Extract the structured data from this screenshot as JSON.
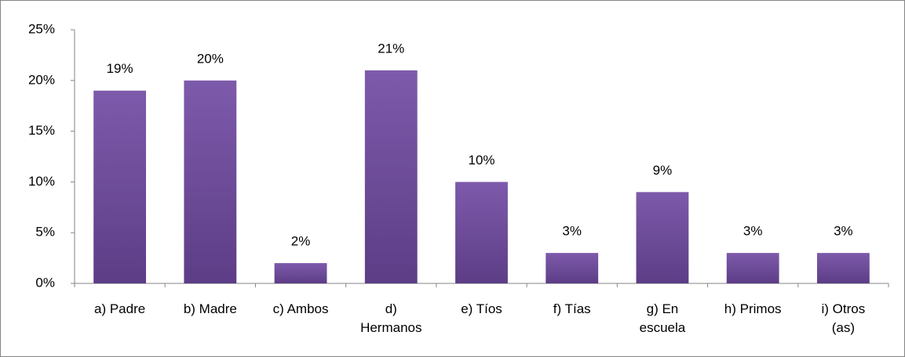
{
  "chart_data": {
    "type": "bar",
    "categories": [
      "a) Padre",
      "b) Madre",
      "c) Ambos",
      "d) Hermanos",
      "e) Tíos",
      "f) Tías",
      "g) En escuela",
      "h) Primos",
      "i) Otros (as)"
    ],
    "values": [
      19,
      20,
      2,
      21,
      10,
      3,
      9,
      3,
      3
    ],
    "value_labels": [
      "19%",
      "20%",
      "2%",
      "21%",
      "10%",
      "3%",
      "9%",
      "3%",
      "3%"
    ],
    "color": "#7b58a6",
    "ylim": [
      0,
      25
    ],
    "yticks": [
      {
        "value": 0,
        "label": "0%"
      },
      {
        "value": 5,
        "label": "5%"
      },
      {
        "value": 10,
        "label": "10%"
      },
      {
        "value": 15,
        "label": "15%"
      },
      {
        "value": 20,
        "label": "20%"
      },
      {
        "value": 25,
        "label": "25%"
      }
    ],
    "grid": false
  }
}
